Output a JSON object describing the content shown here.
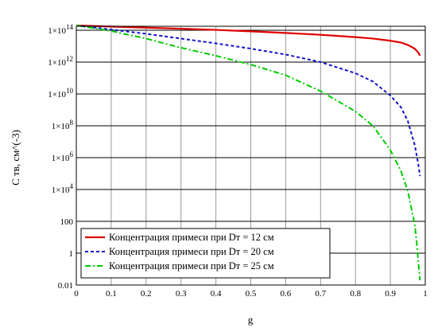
{
  "chart_data": {
    "type": "line",
    "xlabel": "g",
    "ylabel": "C тв, см^(-3)",
    "xlim": [
      0,
      1
    ],
    "ylim_log10": [
      -2,
      14.25
    ],
    "y_scale": "log",
    "grid": true,
    "legend_position": "bottom-left",
    "x_ticks": [
      "0",
      "0.1",
      "0.2",
      "0.3",
      "0.4",
      "0.5",
      "0.6",
      "0.7",
      "0.8",
      "0.9",
      "1"
    ],
    "y_ticks": [
      {
        "base": "0.01",
        "exp": ""
      },
      {
        "base": "1",
        "exp": ""
      },
      {
        "base": "100",
        "exp": ""
      },
      {
        "base": "1×10",
        "exp": "4"
      },
      {
        "base": "1×10",
        "exp": "6"
      },
      {
        "base": "1×10",
        "exp": "8"
      },
      {
        "base": "1×10",
        "exp": "10"
      },
      {
        "base": "1×10",
        "exp": "12"
      },
      {
        "base": "1×10",
        "exp": "14"
      }
    ],
    "series": [
      {
        "name": "Концентрация примеси при Dт = 12 см",
        "color": "#e00000",
        "style": "solid",
        "x": [
          0,
          0.1,
          0.2,
          0.3,
          0.4,
          0.5,
          0.6,
          0.7,
          0.8,
          0.85,
          0.9,
          0.93,
          0.95,
          0.97,
          0.98,
          0.985
        ],
        "y": [
          200000000000000.0,
          170000000000000.0,
          145000000000000.0,
          125000000000000.0,
          105000000000000.0,
          85000000000000.0,
          68000000000000.0,
          52000000000000.0,
          37000000000000.0,
          30000000000000.0,
          22000000000000.0,
          17000000000000.0,
          12000000000000.0,
          7000000000000.0,
          4000000000000.0,
          2500000000000.0
        ]
      },
      {
        "name": "Концентрация примеси при Dт = 20 см",
        "color": "#1010d0",
        "style": "dashed",
        "x": [
          0,
          0.1,
          0.2,
          0.3,
          0.4,
          0.5,
          0.6,
          0.7,
          0.8,
          0.85,
          0.9,
          0.93,
          0.95,
          0.97,
          0.98,
          0.985
        ],
        "y": [
          200000000000000.0,
          110000000000000.0,
          60000000000000.0,
          30000000000000.0,
          15000000000000.0,
          7000000000000.0,
          3000000000000.0,
          1000000000000.0,
          200000000000.0,
          60000000000.0,
          8000000000.0,
          1500000000.0,
          200000000.0,
          6000000.0,
          400000.0,
          70000.0
        ]
      },
      {
        "name": "Концентрация примеси при Dт = 25 см",
        "color": "#00cc00",
        "style": "dashdot",
        "x": [
          0,
          0.1,
          0.2,
          0.3,
          0.4,
          0.5,
          0.6,
          0.7,
          0.8,
          0.85,
          0.9,
          0.93,
          0.95,
          0.97,
          0.975,
          0.98,
          0.985
        ],
        "y": [
          200000000000000.0,
          90000000000000.0,
          30000000000000.0,
          8000000000000.0,
          2500000000000.0,
          700000000000.0,
          150000000000.0,
          15000000000.0,
          800000000.0,
          100000000.0,
          3000000.0,
          150000.0,
          8000.0,
          60,
          6,
          0.3,
          0.02
        ]
      }
    ]
  }
}
